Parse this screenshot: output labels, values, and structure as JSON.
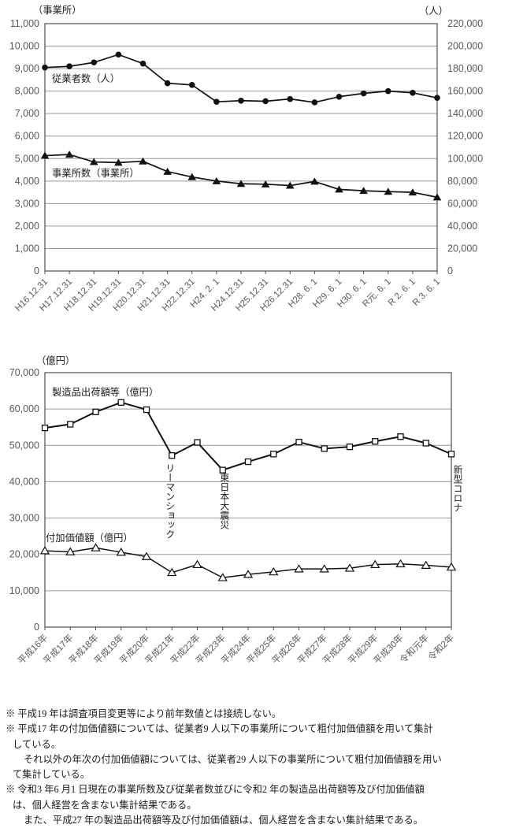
{
  "colors": {
    "background": "#ffffff",
    "text": "#1a1a1a",
    "axis_text": "#595959",
    "line": "#111111",
    "grid": "#9a9a9a",
    "border": "#4d4d4d"
  },
  "chart_data": [
    {
      "type": "line",
      "name": "establishments-employees",
      "unit_left": "（事業所）",
      "unit_right": "（人）",
      "categories": [
        "H16.12.31",
        "H17.12.31",
        "H18.12.31",
        "H19.12.31",
        "H20.12.31",
        "H21.12.31",
        "H22.12.31",
        "H24. 2. 1",
        "H24.12.31",
        "H25.12.31",
        "H26.12.31",
        "H28. 6. 1",
        "H29. 6. 1",
        "H30. 6. 1",
        "R元. 6. 1",
        "R 2. 6. 1",
        "R 3. 6. 1"
      ],
      "left_axis": {
        "min": 0,
        "max": 11000,
        "step": 1000
      },
      "right_axis": {
        "min": 0,
        "max": 220000,
        "step": 20000
      },
      "series": [
        {
          "name": "従業者数（人）",
          "axis": "right",
          "marker": "filled-circle",
          "values": [
            181000,
            182000,
            185500,
            192500,
            184500,
            167000,
            165500,
            150500,
            151500,
            151000,
            153000,
            150000,
            155000,
            158000,
            160000,
            158500,
            154000
          ]
        },
        {
          "name": "事業所数（事業所）",
          "axis": "left",
          "marker": "filled-triangle",
          "values": [
            5130,
            5180,
            4850,
            4820,
            4880,
            4420,
            4180,
            4000,
            3880,
            3860,
            3800,
            3980,
            3630,
            3570,
            3530,
            3500,
            3280
          ]
        }
      ]
    },
    {
      "type": "line",
      "name": "shipments-added-value",
      "unit_left": "（億円）",
      "categories": [
        "平成16年",
        "平成17年",
        "平成18年",
        "平成19年",
        "平成20年",
        "平成21年",
        "平成22年",
        "平成23年",
        "平成24年",
        "平成25年",
        "平成26年",
        "平成27年",
        "平成28年",
        "平成29年",
        "平成30年",
        "令和元年",
        "令和2年"
      ],
      "left_axis": {
        "min": 0,
        "max": 70000,
        "step": 10000
      },
      "series": [
        {
          "name": "製造品出荷額等（億円）",
          "axis": "left",
          "marker": "open-square",
          "values": [
            54800,
            55800,
            59200,
            61800,
            59800,
            47200,
            50800,
            43200,
            45500,
            47600,
            50900,
            49100,
            49600,
            51100,
            52400,
            50600,
            47600
          ]
        },
        {
          "name": "付加価値額（億円）",
          "axis": "left",
          "marker": "open-triangle",
          "values": [
            21000,
            20700,
            21800,
            20600,
            19400,
            15000,
            17200,
            13600,
            14500,
            15200,
            16000,
            16000,
            16200,
            17200,
            17400,
            17000,
            16500
          ]
        }
      ],
      "annotations": [
        {
          "text": "リーマンショック",
          "x_index": 5
        },
        {
          "text": "東日本大震災",
          "x_index": 7
        },
        {
          "text": "新型コロナ",
          "x_index": null,
          "position": "right-outside"
        }
      ]
    }
  ],
  "footnotes": [
    {
      "indent": 0,
      "text": "※ 平成19 年は調査項目変更等により前年数値とは接続しない。"
    },
    {
      "indent": 0,
      "text": "※ 平成17 年の付加価値額については、従業者9 人以下の事業所について粗付加価値額を用いて集計"
    },
    {
      "indent": 1,
      "text": "している。"
    },
    {
      "indent": 2,
      "text": "それ以外の年次の付加価値額については、従業者29 人以下の事業所について粗付加価値額を用い"
    },
    {
      "indent": 1,
      "text": "て集計している。"
    },
    {
      "indent": 0,
      "text": "※ 令和3 年6 月1 日現在の事業所数及び従業者数並びに令和2 年の製造品出荷額等及び付加価値額"
    },
    {
      "indent": 1,
      "text": "は、個人経営を含まない集計結果である。"
    },
    {
      "indent": 2,
      "text": "また、平成27 年の製造品出荷額等及び付加価値額は、個人経営を含まない集計結果である。"
    }
  ]
}
